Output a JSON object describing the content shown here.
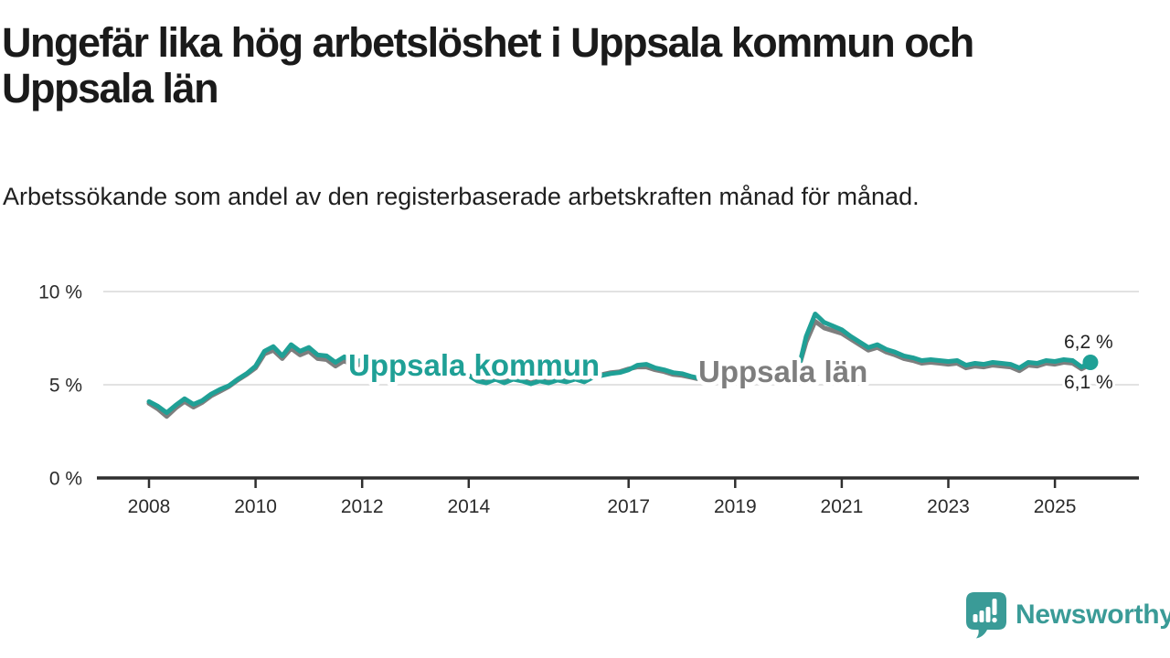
{
  "header": {
    "title": "Ungefär lika hög arbetslöshet i Uppsala kommun och Uppsala län",
    "subtitle": "Arbetssökande som andel av den registerbaserade arbetskraften månad för månad."
  },
  "colors": {
    "teal": "#1fa096",
    "gray": "#7e7e7e",
    "grid": "#d9d9d9",
    "axis": "#2f2f2f",
    "text_dark": "#222222",
    "logo_teal": "#3a9b97"
  },
  "branding": {
    "wordmark": "Newsworthy",
    "icon": "newsworthy-speech-bubble-bar-chart-icon"
  },
  "chart_data": {
    "type": "line",
    "title": "Ungefär lika hög arbetslöshet i Uppsala kommun och Uppsala län",
    "subtitle": "Arbetssökande som andel av den registerbaserade arbetskraften månad för månad.",
    "unit": "%",
    "x_start": 2008.0,
    "x_step_months": 2,
    "x_end_approx": 2025.67,
    "ylim": [
      0,
      10.5
    ],
    "grid": "horizontal-only",
    "legend": "inline-labels",
    "yticks": [
      {
        "value": 10,
        "label": "10 %"
      },
      {
        "value": 5,
        "label": "5 %"
      },
      {
        "value": 0,
        "label": "0 %"
      }
    ],
    "xticks": [
      {
        "value": 2008,
        "label": "2008"
      },
      {
        "value": 2010,
        "label": "2010"
      },
      {
        "value": 2012,
        "label": "2012"
      },
      {
        "value": 2014,
        "label": "2014"
      },
      {
        "value": 2017,
        "label": "2017"
      },
      {
        "value": 2019,
        "label": "2019"
      },
      {
        "value": 2021,
        "label": "2021"
      },
      {
        "value": 2023,
        "label": "2023"
      },
      {
        "value": 2025,
        "label": "2025"
      }
    ],
    "series": [
      {
        "name": "Uppsala kommun",
        "color_key": "teal",
        "end_label": "6,2 %",
        "end_value": 6.2,
        "values": [
          4.1,
          3.85,
          3.5,
          3.9,
          4.25,
          3.95,
          4.15,
          4.5,
          4.75,
          4.95,
          5.3,
          5.6,
          6.0,
          6.8,
          7.05,
          6.55,
          7.15,
          6.8,
          7.0,
          6.6,
          6.55,
          6.2,
          6.5,
          6.15,
          6.35,
          6.1,
          6.2,
          5.95,
          6.05,
          5.85,
          5.95,
          5.75,
          5.85,
          5.65,
          5.7,
          5.5,
          5.5,
          5.2,
          5.1,
          5.3,
          5.1,
          5.3,
          5.2,
          5.05,
          5.2,
          5.1,
          5.25,
          5.15,
          5.3,
          5.15,
          5.4,
          5.5,
          5.6,
          5.65,
          5.8,
          6.05,
          6.1,
          5.9,
          5.8,
          5.65,
          5.6,
          5.45,
          5.35,
          5.3,
          5.25,
          5.3,
          5.3,
          5.25,
          5.2,
          5.25,
          5.3,
          5.35,
          5.5,
          5.6,
          7.6,
          8.8,
          8.35,
          8.15,
          7.95,
          7.6,
          7.3,
          7.0,
          7.15,
          6.9,
          6.75,
          6.55,
          6.45,
          6.3,
          6.35,
          6.3,
          6.25,
          6.3,
          6.05,
          6.15,
          6.1,
          6.2,
          6.15,
          6.1,
          5.9,
          6.2,
          6.15,
          6.3,
          6.25,
          6.35,
          6.3,
          5.95,
          6.2
        ]
      },
      {
        "name": "Uppsala län",
        "color_key": "gray",
        "end_label": "6,1 %",
        "end_value": 6.1,
        "values": [
          4.0,
          3.7,
          3.3,
          3.75,
          4.1,
          3.8,
          4.05,
          4.4,
          4.65,
          4.9,
          5.25,
          5.55,
          5.9,
          6.65,
          6.85,
          6.4,
          6.95,
          6.6,
          6.8,
          6.4,
          6.35,
          6.0,
          6.3,
          5.95,
          6.15,
          5.9,
          6.0,
          5.85,
          5.9,
          5.75,
          5.85,
          5.7,
          5.8,
          5.6,
          5.65,
          5.5,
          5.5,
          5.2,
          5.15,
          5.3,
          5.15,
          5.3,
          5.25,
          5.1,
          5.25,
          5.15,
          5.3,
          5.2,
          5.35,
          5.25,
          5.45,
          5.55,
          5.65,
          5.7,
          5.85,
          5.95,
          5.95,
          5.8,
          5.7,
          5.55,
          5.5,
          5.4,
          5.3,
          5.25,
          5.25,
          5.3,
          5.35,
          5.3,
          5.25,
          5.3,
          5.35,
          5.4,
          5.55,
          5.65,
          7.3,
          8.4,
          8.05,
          7.9,
          7.75,
          7.45,
          7.15,
          6.85,
          7.0,
          6.75,
          6.6,
          6.4,
          6.3,
          6.15,
          6.2,
          6.15,
          6.1,
          6.15,
          5.9,
          6.0,
          5.95,
          6.05,
          6.0,
          5.95,
          5.75,
          6.05,
          6.0,
          6.15,
          6.1,
          6.2,
          6.15,
          5.85,
          6.1
        ]
      }
    ]
  }
}
